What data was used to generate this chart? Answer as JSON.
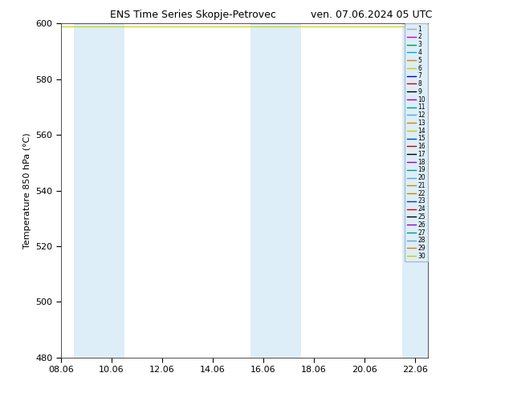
{
  "title_left": "ENS Time Series Skopje-Petrovec",
  "title_right": "ven. 07.06.2024 05 UTC",
  "ylabel": "Temperature 850 hPa (°C)",
  "ylim": [
    480,
    600
  ],
  "yticks": [
    480,
    500,
    520,
    540,
    560,
    580,
    600
  ],
  "xtick_labels": [
    "08.06",
    "10.06",
    "12.06",
    "14.06",
    "16.06",
    "18.06",
    "20.06",
    "22.06"
  ],
  "xtick_positions": [
    0,
    2,
    4,
    6,
    8,
    10,
    12,
    14
  ],
  "xlim": [
    0,
    14.5
  ],
  "shading_bands": [
    {
      "x_start": 0.5,
      "x_end": 2.5
    },
    {
      "x_start": 7.5,
      "x_end": 9.5
    },
    {
      "x_start": 13.5,
      "x_end": 14.5
    }
  ],
  "shading_color": "#ddeef8",
  "background_color": "#ffffff",
  "legend_background": "#ddeef8",
  "legend_edge_color": "#aabbcc",
  "num_members": 30,
  "member_colors": [
    "#aaaaaa",
    "#cc00cc",
    "#009933",
    "#00aadd",
    "#cc8800",
    "#cccc00",
    "#0000cc",
    "#cc0000",
    "#000000",
    "#9900cc",
    "#009988",
    "#55aacc",
    "#cc8800",
    "#cccc00",
    "#0044aa",
    "#cc0000",
    "#000000",
    "#9900cc",
    "#009988",
    "#55aacc",
    "#cc8800",
    "#cc8800",
    "#0044aa",
    "#cc0000",
    "#000000",
    "#9900cc",
    "#009988",
    "#55aacc",
    "#cc8800",
    "#cccc00"
  ],
  "line_value": 599.0,
  "total_days": 14.5,
  "figsize": [
    6.34,
    4.9
  ],
  "dpi": 100,
  "title_fontsize": 9,
  "axis_fontsize": 8,
  "legend_fontsize": 5.5,
  "ylabel_fontsize": 8
}
